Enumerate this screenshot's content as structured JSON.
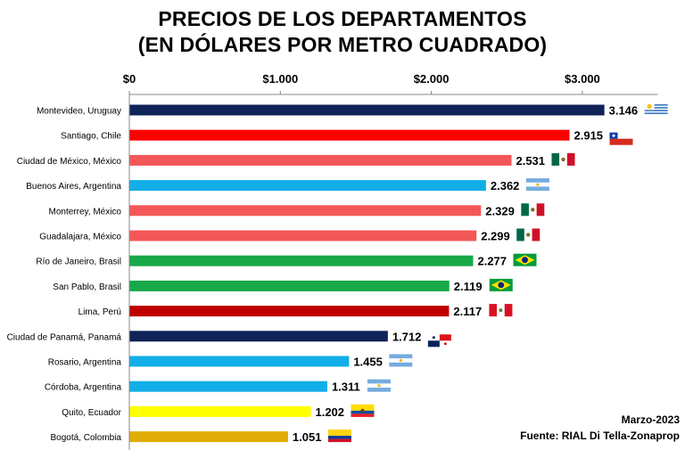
{
  "chart_data": {
    "type": "bar",
    "orientation": "horizontal",
    "title_line1": "PRECIOS DE LOS DEPARTAMENTOS",
    "title_line2": "(EN DÓLARES POR METRO CUADRADO)",
    "xlim": [
      0,
      3500
    ],
    "x_ticks": [
      0,
      1000,
      2000,
      3000
    ],
    "x_tick_labels": [
      "$0",
      "$1.000",
      "$2.000",
      "$3.000"
    ],
    "grid": false,
    "categories": [
      "Montevideo, Uruguay",
      "Santiago, Chile",
      "Ciudad de México, México",
      "Buenos Aires, Argentina",
      "Monterrey, México",
      "Guadalajara, México",
      "Río de Janeiro, Brasil",
      "San Pablo, Brasil",
      "Lima, Perú",
      "Ciudad de Panamá, Panamá",
      "Rosario, Argentina",
      "Córdoba, Argentina",
      "Quito, Ecuador",
      "Bogotá, Colombia"
    ],
    "values": [
      3146,
      2915,
      2531,
      2362,
      2329,
      2299,
      2277,
      2119,
      2117,
      1712,
      1455,
      1311,
      1202,
      1051
    ],
    "value_labels": [
      "3.146",
      "2.915",
      "2.531",
      "2.362",
      "2.329",
      "2.299",
      "2.277",
      "2.119",
      "2.117",
      "1.712",
      "1.455",
      "1.311",
      "1.202",
      "1.051"
    ],
    "bar_colors": [
      "#0f2358",
      "#ff0000",
      "#f45757",
      "#12aee8",
      "#f45757",
      "#f45757",
      "#18a84a",
      "#18a84a",
      "#c00000",
      "#0f2358",
      "#12aee8",
      "#12aee8",
      "#ffff00",
      "#e0ad06"
    ],
    "flags": [
      "uruguay-flag",
      "chile-flag",
      "mexico-flag",
      "argentina-flag",
      "mexico-flag",
      "mexico-flag",
      "brazil-flag",
      "brazil-flag",
      "peru-flag",
      "panama-flag",
      "argentina-flag",
      "argentina-flag",
      "ecuador-flag",
      "colombia-flag"
    ]
  },
  "footer": {
    "date": "Marzo-2023",
    "source": "Fuente: RIAL Di Tella-Zonaprop"
  }
}
